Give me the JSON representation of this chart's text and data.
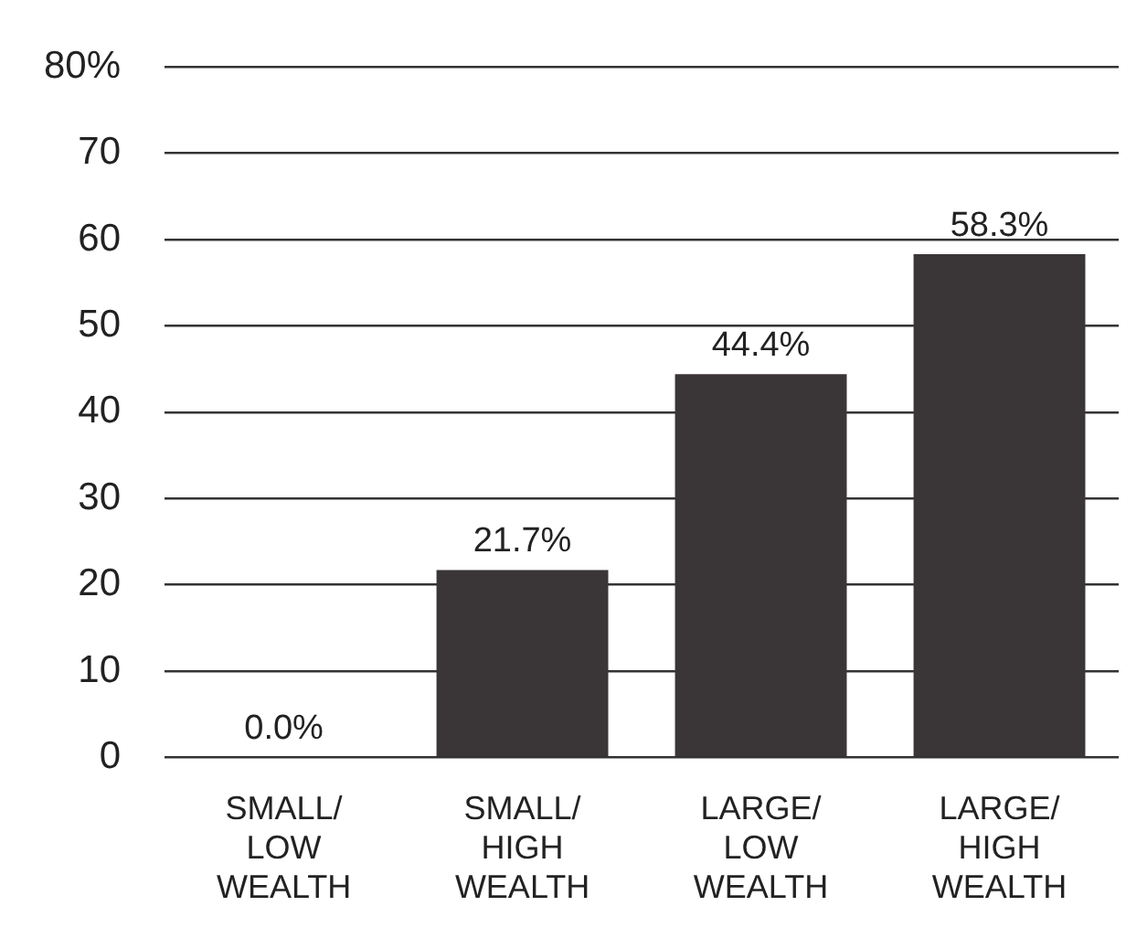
{
  "chart_data": {
    "type": "bar",
    "categories": [
      "SMALL/ LOW WEALTH",
      "SMALL/ HIGH WEALTH",
      "LARGE/ LOW WEALTH",
      "LARGE/ HIGH WEALTH"
    ],
    "values": [
      0.0,
      21.7,
      44.4,
      58.3
    ],
    "value_labels": [
      "0.0%",
      "21.7%",
      "44.4%",
      "58.3%"
    ],
    "color": "#3a3536",
    "ylim": [
      0,
      80
    ],
    "yticks": [
      0,
      10,
      20,
      30,
      40,
      50,
      60,
      70,
      {
        "value": 80,
        "label": "80%"
      }
    ],
    "grid": "y"
  }
}
